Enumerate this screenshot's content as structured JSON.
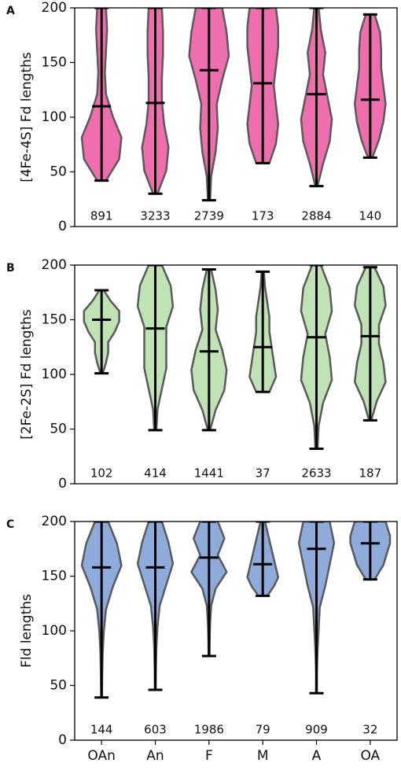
{
  "chart_data": [
    {
      "type": "violin",
      "panel_label": "A",
      "y_label": "[4Fe-4S] Fd lengths",
      "color": "#ef6fae",
      "ylim": [
        0,
        200
      ],
      "yticks": [
        0,
        50,
        100,
        150,
        200
      ],
      "violins": [
        {
          "min": 42,
          "max": 200,
          "median": 110,
          "count": 891,
          "density": [
            0.2,
            0.8,
            0.9,
            0.5,
            0.2,
            0.15,
            0.2,
            0.25,
            0.2
          ]
        },
        {
          "min": 30,
          "max": 200,
          "median": 113,
          "count": 3233,
          "density": [
            0.1,
            0.5,
            0.6,
            0.4,
            0.3,
            0.3,
            0.35,
            0.35,
            0.3
          ]
        },
        {
          "min": 24,
          "max": 200,
          "median": 143,
          "count": 2739,
          "density": [
            0.05,
            0.1,
            0.3,
            0.4,
            0.35,
            0.6,
            0.9,
            0.8,
            0.6
          ]
        },
        {
          "min": 58,
          "max": 200,
          "median": 131,
          "count": 173,
          "density": [
            0.3,
            0.6,
            0.7,
            0.6,
            0.5,
            0.6,
            0.7,
            0.7,
            0.6
          ]
        },
        {
          "min": 37,
          "max": 200,
          "median": 121,
          "count": 2884,
          "density": [
            0.05,
            0.3,
            0.6,
            0.7,
            0.5,
            0.3,
            0.4,
            0.2,
            0.1
          ]
        },
        {
          "min": 63,
          "max": 194,
          "median": 116,
          "count": 140,
          "density": [
            0.1,
            0.4,
            0.6,
            0.7,
            0.6,
            0.5,
            0.5,
            0.45,
            0.2
          ]
        }
      ]
    },
    {
      "type": "violin",
      "panel_label": "B",
      "y_label": "[2Fe-2S] Fd lengths",
      "color": "#bfe3b5",
      "ylim": [
        0,
        200
      ],
      "yticks": [
        0,
        50,
        100,
        150,
        200
      ],
      "violins": [
        {
          "min": 101,
          "max": 177,
          "median": 150,
          "count": 102,
          "density": [
            0.05,
            0.2,
            0.3,
            0.3,
            0.6,
            0.8,
            0.8,
            0.4,
            0.1
          ]
        },
        {
          "min": 49,
          "max": 200,
          "median": 142,
          "count": 414,
          "density": [
            0.05,
            0.1,
            0.3,
            0.5,
            0.5,
            0.5,
            0.8,
            0.7,
            0.3
          ]
        },
        {
          "min": 49,
          "max": 196,
          "median": 121,
          "count": 1441,
          "density": [
            0.05,
            0.3,
            0.7,
            0.8,
            0.6,
            0.3,
            0.4,
            0.3,
            0.1
          ]
        },
        {
          "min": 84,
          "max": 194,
          "median": 125,
          "count": 37,
          "density": [
            0.3,
            0.6,
            0.5,
            0.4,
            0.3,
            0.3,
            0.2,
            0.1,
            0.05
          ]
        },
        {
          "min": 32,
          "max": 200,
          "median": 134,
          "count": 2633,
          "density": [
            0.05,
            0.1,
            0.3,
            0.7,
            0.6,
            0.4,
            0.7,
            0.6,
            0.2
          ]
        },
        {
          "min": 58,
          "max": 198,
          "median": 135,
          "count": 187,
          "density": [
            0.05,
            0.3,
            0.7,
            0.6,
            0.4,
            0.4,
            0.7,
            0.6,
            0.2
          ]
        }
      ]
    },
    {
      "type": "violin",
      "panel_label": "C",
      "y_label": "Fld lengths",
      "color": "#8eabdc",
      "ylim": [
        0,
        200
      ],
      "yticks": [
        0,
        50,
        100,
        150,
        200
      ],
      "categories": [
        "OAn",
        "An",
        "F",
        "M",
        "A",
        "OA"
      ],
      "violins": [
        {
          "min": 39,
          "max": 200,
          "median": 158,
          "count": 144,
          "density": [
            0.02,
            0.03,
            0.05,
            0.1,
            0.2,
            0.5,
            0.9,
            0.7,
            0.3
          ]
        },
        {
          "min": 46,
          "max": 200,
          "median": 158,
          "count": 603,
          "density": [
            0.02,
            0.03,
            0.05,
            0.1,
            0.2,
            0.5,
            0.8,
            0.6,
            0.3
          ]
        },
        {
          "min": 77,
          "max": 200,
          "median": 167,
          "count": 1986,
          "density": [
            0.02,
            0.03,
            0.05,
            0.1,
            0.3,
            0.8,
            0.4,
            0.7,
            0.4
          ]
        },
        {
          "min": 132,
          "max": 200,
          "median": 161,
          "count": 79,
          "density": [
            0.2,
            0.5,
            0.7,
            0.6,
            0.5,
            0.4,
            0.3,
            0.2,
            0.1
          ]
        },
        {
          "min": 43,
          "max": 200,
          "median": 175,
          "count": 909,
          "density": [
            0.02,
            0.02,
            0.05,
            0.1,
            0.15,
            0.4,
            0.6,
            0.8,
            0.6
          ]
        },
        {
          "min": 147,
          "max": 200,
          "median": 180,
          "count": 32,
          "density": [
            0.2,
            0.4,
            0.6,
            0.7,
            0.8,
            0.9,
            0.9,
            0.8,
            0.7
          ]
        }
      ]
    }
  ]
}
